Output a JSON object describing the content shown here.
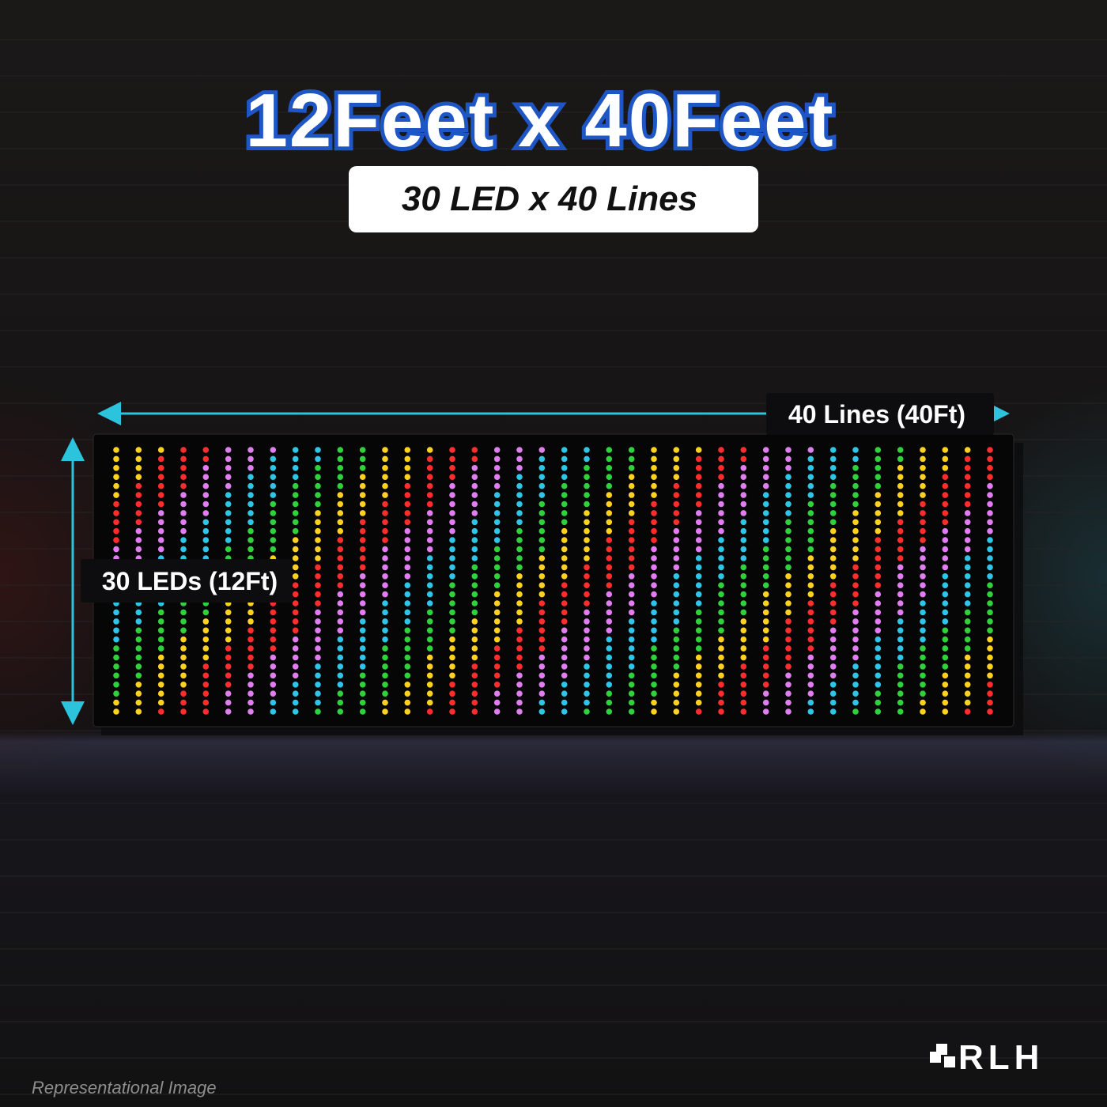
{
  "header": {
    "title": "12Feet x 40Feet",
    "subtitle": "30 LED x 40 Lines"
  },
  "dimensions": {
    "width_label": "40 Lines (40Ft)",
    "height_label": "30 LEDs (12Ft)"
  },
  "footer": {
    "note": "Representational Image",
    "logo": "RLH"
  }
}
